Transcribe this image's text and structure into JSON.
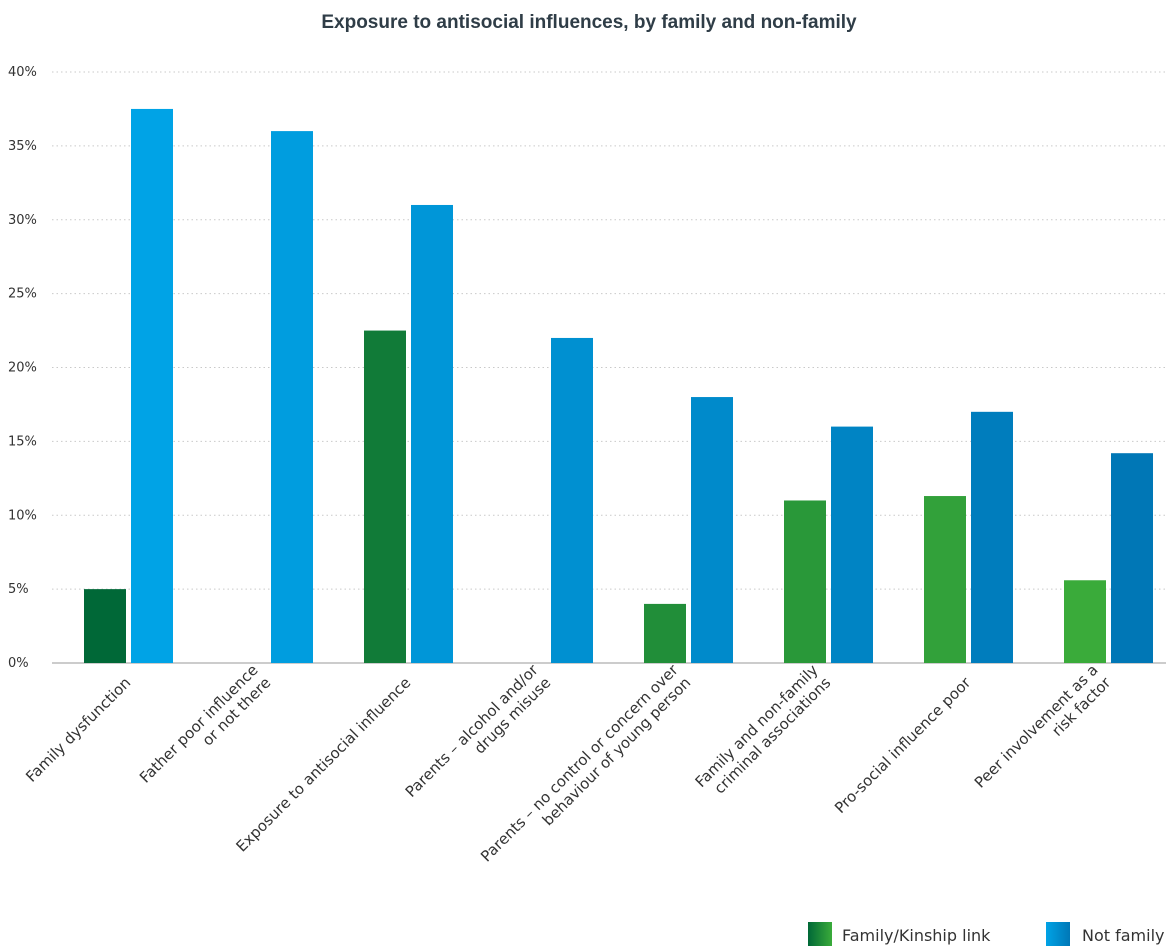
{
  "colors": {
    "family_light": "#3aab3a",
    "family_dark": "#006837",
    "notfamily_light": "#00a3e6",
    "notfamily_dark": "#0077b6"
  },
  "chart_data": {
    "type": "bar",
    "title": "Exposure to antisocial influences, by family and non-family",
    "xlabel": "",
    "ylabel": "",
    "ylim": [
      0,
      40
    ],
    "yticks": [
      "0%",
      "5%",
      "10%",
      "15%",
      "20%",
      "25%",
      "30%",
      "35%",
      "40%"
    ],
    "grid": true,
    "legend_position": "bottom-right",
    "categories": [
      [
        "Family dysfunction"
      ],
      [
        "Father poor influence",
        "or not there"
      ],
      [
        "Exposure to antisocial influence"
      ],
      [
        "Parents – alcohol and/or",
        "drugs misuse"
      ],
      [
        "Parents – no control or concern over",
        "behaviour of young person"
      ],
      [
        "Family and non-family",
        "criminal associations"
      ],
      [
        "Pro-social influence poor"
      ],
      [
        "Peer involvement as a",
        "risk factor"
      ]
    ],
    "series": [
      {
        "name": "Family/Kinship link",
        "values": [
          5,
          0,
          22.5,
          0,
          4,
          11,
          11.3,
          5.6
        ]
      },
      {
        "name": "Not family",
        "values": [
          37.5,
          36,
          31,
          22,
          18,
          16,
          17,
          14.2
        ]
      }
    ]
  }
}
